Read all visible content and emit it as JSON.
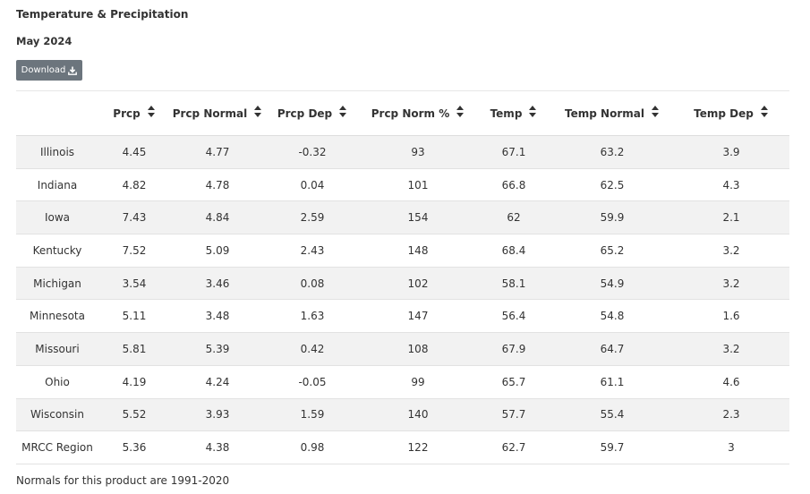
{
  "header": {
    "title": "Temperature & Precipitation",
    "subtitle": "May 2024"
  },
  "toolbar": {
    "download_label": "Download",
    "download_icon": "download-icon"
  },
  "table": {
    "columns": [
      "",
      "Prcp",
      "Prcp Normal",
      "Prcp Dep",
      "Prcp Norm %",
      "Temp",
      "Temp Normal",
      "Temp Dep"
    ],
    "sort_icon": "sort-icon",
    "rows": [
      [
        "Illinois",
        "4.45",
        "4.77",
        "-0.32",
        "93",
        "67.1",
        "63.2",
        "3.9"
      ],
      [
        "Indiana",
        "4.82",
        "4.78",
        "0.04",
        "101",
        "66.8",
        "62.5",
        "4.3"
      ],
      [
        "Iowa",
        "7.43",
        "4.84",
        "2.59",
        "154",
        "62",
        "59.9",
        "2.1"
      ],
      [
        "Kentucky",
        "7.52",
        "5.09",
        "2.43",
        "148",
        "68.4",
        "65.2",
        "3.2"
      ],
      [
        "Michigan",
        "3.54",
        "3.46",
        "0.08",
        "102",
        "58.1",
        "54.9",
        "3.2"
      ],
      [
        "Minnesota",
        "5.11",
        "3.48",
        "1.63",
        "147",
        "56.4",
        "54.8",
        "1.6"
      ],
      [
        "Missouri",
        "5.81",
        "5.39",
        "0.42",
        "108",
        "67.9",
        "64.7",
        "3.2"
      ],
      [
        "Ohio",
        "4.19",
        "4.24",
        "-0.05",
        "99",
        "65.7",
        "61.1",
        "4.6"
      ],
      [
        "Wisconsin",
        "5.52",
        "3.93",
        "1.59",
        "140",
        "57.7",
        "55.4",
        "2.3"
      ],
      [
        "MRCC Region",
        "5.36",
        "4.38",
        "0.98",
        "122",
        "62.7",
        "59.7",
        "3"
      ]
    ]
  },
  "footer": {
    "note": "Normals for this product are 1991-2020"
  },
  "colors": {
    "button_bg": "#6c757d",
    "row_stripe": "#f2f2f2",
    "text": "#333333"
  }
}
